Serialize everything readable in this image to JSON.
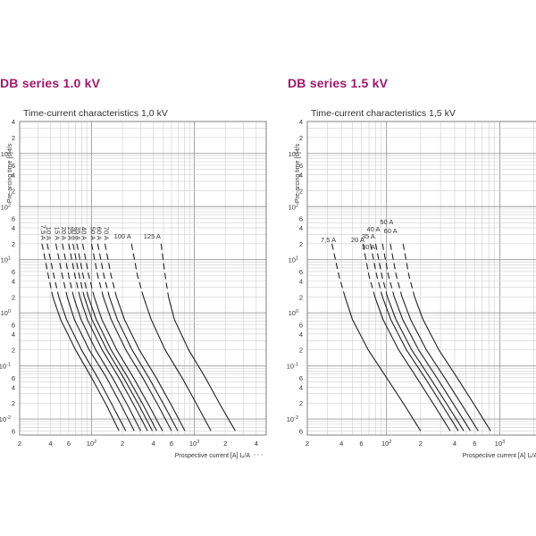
{
  "page": {
    "left_title": "DB series  1.0 kV",
    "right_title": "DB series  1.5 kV"
  },
  "chart_data": [
    {
      "type": "line",
      "title": "Time-current characteristics 1,0 kV",
      "xlabel": "Prospective current [A]  Iₚ/A",
      "ylabel": "Pre-arcing time [s]  t/s",
      "xscale": "log",
      "yscale": "log",
      "xlim": [
        20,
        5000
      ],
      "ylim": [
        0.005,
        4000
      ],
      "grid": true,
      "x_ticks": [
        {
          "v": 20,
          "label": "2",
          "sup": "",
          "raw": true
        },
        {
          "v": 40,
          "label": "4",
          "sup": "",
          "raw": true
        },
        {
          "v": 60,
          "label": "6",
          "sup": "",
          "raw": true
        },
        {
          "v": 100,
          "label": "10",
          "sup": "2",
          "raw": false
        },
        {
          "v": 200,
          "label": "2",
          "sup": "",
          "raw": true
        },
        {
          "v": 400,
          "label": "4",
          "sup": "",
          "raw": true
        },
        {
          "v": 600,
          "label": "6",
          "sup": "",
          "raw": true
        },
        {
          "v": 1000,
          "label": "10",
          "sup": "3",
          "raw": false
        },
        {
          "v": 2000,
          "label": "2",
          "sup": "",
          "raw": true
        },
        {
          "v": 4000,
          "label": "4",
          "sup": "",
          "raw": true
        }
      ],
      "y_ticks": [
        {
          "v": 4000,
          "label": "4",
          "sup": ""
        },
        {
          "v": 2000,
          "label": "2",
          "sup": ""
        },
        {
          "v": 1000,
          "label": "10",
          "sup": "3"
        },
        {
          "v": 600,
          "label": "6",
          "sup": ""
        },
        {
          "v": 400,
          "label": "4",
          "sup": ""
        },
        {
          "v": 200,
          "label": "2",
          "sup": ""
        },
        {
          "v": 100,
          "label": "10",
          "sup": "2"
        },
        {
          "v": 60,
          "label": "6",
          "sup": ""
        },
        {
          "v": 40,
          "label": "4",
          "sup": ""
        },
        {
          "v": 20,
          "label": "2",
          "sup": ""
        },
        {
          "v": 10,
          "label": "10",
          "sup": "1"
        },
        {
          "v": 6,
          "label": "6",
          "sup": ""
        },
        {
          "v": 4,
          "label": "4",
          "sup": ""
        },
        {
          "v": 2,
          "label": "2",
          "sup": ""
        },
        {
          "v": 1,
          "label": "10",
          "sup": "0"
        },
        {
          "v": 0.6,
          "label": "6",
          "sup": ""
        },
        {
          "v": 0.4,
          "label": "4",
          "sup": ""
        },
        {
          "v": 0.2,
          "label": "2",
          "sup": ""
        },
        {
          "v": 0.1,
          "label": "10",
          "sup": "-1"
        },
        {
          "v": 0.06,
          "label": "6",
          "sup": ""
        },
        {
          "v": 0.04,
          "label": "4",
          "sup": ""
        },
        {
          "v": 0.02,
          "label": "2",
          "sup": ""
        },
        {
          "v": 0.01,
          "label": "10",
          "sup": "-2"
        },
        {
          "v": 0.006,
          "label": "6",
          "sup": ""
        }
      ],
      "series": [
        {
          "name": "7,5 A",
          "label_rot": true,
          "points": [
            [
              33,
              20
            ],
            [
              38,
              5
            ],
            [
              42,
              2
            ],
            [
              50,
              0.75
            ],
            [
              70,
              0.2
            ],
            [
              100,
              0.06
            ],
            [
              140,
              0.018
            ],
            [
              185,
              0.006
            ]
          ]
        },
        {
          "name": "10 A",
          "label_rot": true,
          "points": [
            [
              37,
              20
            ],
            [
              43,
              5
            ],
            [
              48,
              2
            ],
            [
              57,
              0.75
            ],
            [
              80,
              0.2
            ],
            [
              115,
              0.06
            ],
            [
              160,
              0.018
            ],
            [
              215,
              0.006
            ]
          ]
        },
        {
          "name": "15 A",
          "label_rot": true,
          "points": [
            [
              45,
              20
            ],
            [
              52,
              5
            ],
            [
              58,
              2
            ],
            [
              68,
              0.75
            ],
            [
              95,
              0.2
            ],
            [
              140,
              0.06
            ],
            [
              195,
              0.018
            ],
            [
              260,
              0.006
            ]
          ]
        },
        {
          "name": "20 A",
          "label_rot": true,
          "points": [
            [
              52,
              20
            ],
            [
              60,
              5
            ],
            [
              67,
              2
            ],
            [
              79,
              0.75
            ],
            [
              110,
              0.2
            ],
            [
              160,
              0.06
            ],
            [
              225,
              0.018
            ],
            [
              300,
              0.006
            ]
          ]
        },
        {
          "name": "25 A",
          "label_rot": true,
          "points": [
            [
              60,
              20
            ],
            [
              69,
              5
            ],
            [
              77,
              2
            ],
            [
              91,
              0.75
            ],
            [
              127,
              0.2
            ],
            [
              185,
              0.06
            ],
            [
              260,
              0.018
            ],
            [
              350,
              0.006
            ]
          ]
        },
        {
          "name": "30 A",
          "label_rot": true,
          "points": [
            [
              66,
              20
            ],
            [
              76,
              5
            ],
            [
              85,
              2
            ],
            [
              101,
              0.75
            ],
            [
              141,
              0.2
            ],
            [
              205,
              0.06
            ],
            [
              290,
              0.018
            ],
            [
              390,
              0.006
            ]
          ]
        },
        {
          "name": "35 A",
          "label_rot": true,
          "points": [
            [
              72,
              20
            ],
            [
              83,
              5
            ],
            [
              93,
              2
            ],
            [
              111,
              0.75
            ],
            [
              155,
              0.2
            ],
            [
              226,
              0.06
            ],
            [
              320,
              0.018
            ],
            [
              430,
              0.006
            ]
          ]
        },
        {
          "name": "40 A",
          "label_rot": true,
          "points": [
            [
              82,
              20
            ],
            [
              94,
              5
            ],
            [
              106,
              2
            ],
            [
              126,
              0.75
            ],
            [
              176,
              0.2
            ],
            [
              256,
              0.06
            ],
            [
              362,
              0.018
            ],
            [
              490,
              0.006
            ]
          ]
        },
        {
          "name": "50 A",
          "label_rot": true,
          "points": [
            [
              100,
              20
            ],
            [
              115,
              5
            ],
            [
              130,
              2
            ],
            [
              155,
              0.75
            ],
            [
              216,
              0.2
            ],
            [
              315,
              0.06
            ],
            [
              445,
              0.018
            ],
            [
              600,
              0.006
            ]
          ]
        },
        {
          "name": "60 A",
          "label_rot": true,
          "points": [
            [
              115,
              20
            ],
            [
              132,
              5
            ],
            [
              149,
              2
            ],
            [
              178,
              0.75
            ],
            [
              248,
              0.2
            ],
            [
              361,
              0.06
            ],
            [
              510,
              0.018
            ],
            [
              690,
              0.006
            ]
          ]
        },
        {
          "name": "70 A",
          "label_rot": true,
          "points": [
            [
              135,
              20
            ],
            [
              155,
              5
            ],
            [
              175,
              2
            ],
            [
              209,
              0.75
            ],
            [
              292,
              0.2
            ],
            [
              425,
              0.06
            ],
            [
              600,
              0.018
            ],
            [
              810,
              0.006
            ]
          ]
        },
        {
          "name": "100 A",
          "label_rot": false,
          "points": [
            [
              245,
              20
            ],
            [
              280,
              5
            ],
            [
              320,
              2
            ],
            [
              380,
              0.75
            ],
            [
              520,
              0.2
            ],
            [
              760,
              0.06
            ],
            [
              1070,
              0.018
            ],
            [
              1450,
              0.006
            ]
          ]
        },
        {
          "name": "125 A",
          "label_rot": false,
          "points": [
            [
              475,
              20
            ],
            [
              520,
              5
            ],
            [
              560,
              2
            ],
            [
              640,
              0.75
            ],
            [
              880,
              0.2
            ],
            [
              1280,
              0.06
            ],
            [
              1800,
              0.018
            ],
            [
              2500,
              0.006
            ]
          ]
        }
      ]
    },
    {
      "type": "line",
      "title": "Time-current characteristics 1,5 kV",
      "xlabel": "Prospective current [A]  Iₚ/A",
      "ylabel": "Pre-arcing time [s]  t/s",
      "xscale": "log",
      "yscale": "log",
      "xlim": [
        20,
        3000
      ],
      "ylim": [
        0.005,
        4000
      ],
      "grid": true,
      "x_ticks": [
        {
          "v": 20,
          "label": "2",
          "sup": "",
          "raw": true
        },
        {
          "v": 40,
          "label": "4",
          "sup": "",
          "raw": true
        },
        {
          "v": 60,
          "label": "6",
          "sup": "",
          "raw": true
        },
        {
          "v": 100,
          "label": "10",
          "sup": "2",
          "raw": false
        },
        {
          "v": 200,
          "label": "2",
          "sup": "",
          "raw": true
        },
        {
          "v": 400,
          "label": "4",
          "sup": "",
          "raw": true
        },
        {
          "v": 600,
          "label": "6",
          "sup": "",
          "raw": true
        },
        {
          "v": 1000,
          "label": "10",
          "sup": "3",
          "raw": false
        }
      ],
      "y_ticks": [
        {
          "v": 4000,
          "label": "4",
          "sup": ""
        },
        {
          "v": 2000,
          "label": "2",
          "sup": ""
        },
        {
          "v": 1000,
          "label": "10",
          "sup": "3"
        },
        {
          "v": 600,
          "label": "6",
          "sup": ""
        },
        {
          "v": 400,
          "label": "4",
          "sup": ""
        },
        {
          "v": 200,
          "label": "2",
          "sup": ""
        },
        {
          "v": 100,
          "label": "10",
          "sup": "2"
        },
        {
          "v": 60,
          "label": "6",
          "sup": ""
        },
        {
          "v": 40,
          "label": "4",
          "sup": ""
        },
        {
          "v": 20,
          "label": "2",
          "sup": ""
        },
        {
          "v": 10,
          "label": "10",
          "sup": "1"
        },
        {
          "v": 6,
          "label": "6",
          "sup": ""
        },
        {
          "v": 4,
          "label": "4",
          "sup": ""
        },
        {
          "v": 2,
          "label": "2",
          "sup": ""
        },
        {
          "v": 1,
          "label": "10",
          "sup": "0"
        },
        {
          "v": 0.6,
          "label": "6",
          "sup": ""
        },
        {
          "v": 0.4,
          "label": "4",
          "sup": ""
        },
        {
          "v": 0.2,
          "label": "2",
          "sup": ""
        },
        {
          "v": 0.1,
          "label": "10",
          "sup": "-1"
        },
        {
          "v": 0.06,
          "label": "6",
          "sup": ""
        },
        {
          "v": 0.04,
          "label": "4",
          "sup": ""
        },
        {
          "v": 0.02,
          "label": "2",
          "sup": ""
        },
        {
          "v": 0.01,
          "label": "10",
          "sup": "-2"
        },
        {
          "v": 0.006,
          "label": "6",
          "sup": ""
        }
      ],
      "series": [
        {
          "name": "7,5 A",
          "label_rot": false,
          "points": [
            [
              33,
              20
            ],
            [
              38,
              5
            ],
            [
              43,
              2
            ],
            [
              50,
              0.75
            ],
            [
              69,
              0.2
            ],
            [
              100,
              0.06
            ],
            [
              145,
              0.018
            ],
            [
              200,
              0.006
            ]
          ]
        },
        {
          "name": "20 A",
          "label_rot": false,
          "points": [
            [
              62,
              20
            ],
            [
              70,
              5
            ],
            [
              79,
              2
            ],
            [
              93,
              0.75
            ],
            [
              128,
              0.2
            ],
            [
              185,
              0.06
            ],
            [
              265,
              0.018
            ],
            [
              365,
              0.006
            ]
          ]
        },
        {
          "name": "30 A",
          "label_rot": false,
          "points": [
            [
              72,
              20
            ],
            [
              82,
              5
            ],
            [
              92,
              2
            ],
            [
              109,
              0.75
            ],
            [
              150,
              0.2
            ],
            [
              218,
              0.06
            ],
            [
              312,
              0.018
            ],
            [
              430,
              0.006
            ]
          ]
        },
        {
          "name": "35 A",
          "label_rot": false,
          "points": [
            [
              80,
              20
            ],
            [
              91,
              5
            ],
            [
              102,
              2
            ],
            [
              121,
              0.75
            ],
            [
              167,
              0.2
            ],
            [
              242,
              0.06
            ],
            [
              347,
              0.018
            ],
            [
              480,
              0.006
            ]
          ]
        },
        {
          "name": "40 A",
          "label_rot": false,
          "points": [
            [
              92,
              20
            ],
            [
              104,
              5
            ],
            [
              117,
              2
            ],
            [
              139,
              0.75
            ],
            [
              192,
              0.2
            ],
            [
              278,
              0.06
            ],
            [
              398,
              0.018
            ],
            [
              550,
              0.006
            ]
          ]
        },
        {
          "name": "50 A",
          "label_rot": false,
          "points": [
            [
              108,
              20
            ],
            [
              122,
              5
            ],
            [
              137,
              2
            ],
            [
              163,
              0.75
            ],
            [
              225,
              0.2
            ],
            [
              326,
              0.06
            ],
            [
              467,
              0.018
            ],
            [
              645,
              0.006
            ]
          ]
        },
        {
          "name": "60 A",
          "label_rot": false,
          "points": [
            [
              140,
              20
            ],
            [
              158,
              5
            ],
            [
              177,
              2
            ],
            [
              210,
              0.75
            ],
            [
              290,
              0.2
            ],
            [
              420,
              0.06
            ],
            [
              602,
              0.018
            ],
            [
              830,
              0.006
            ]
          ]
        }
      ]
    }
  ]
}
